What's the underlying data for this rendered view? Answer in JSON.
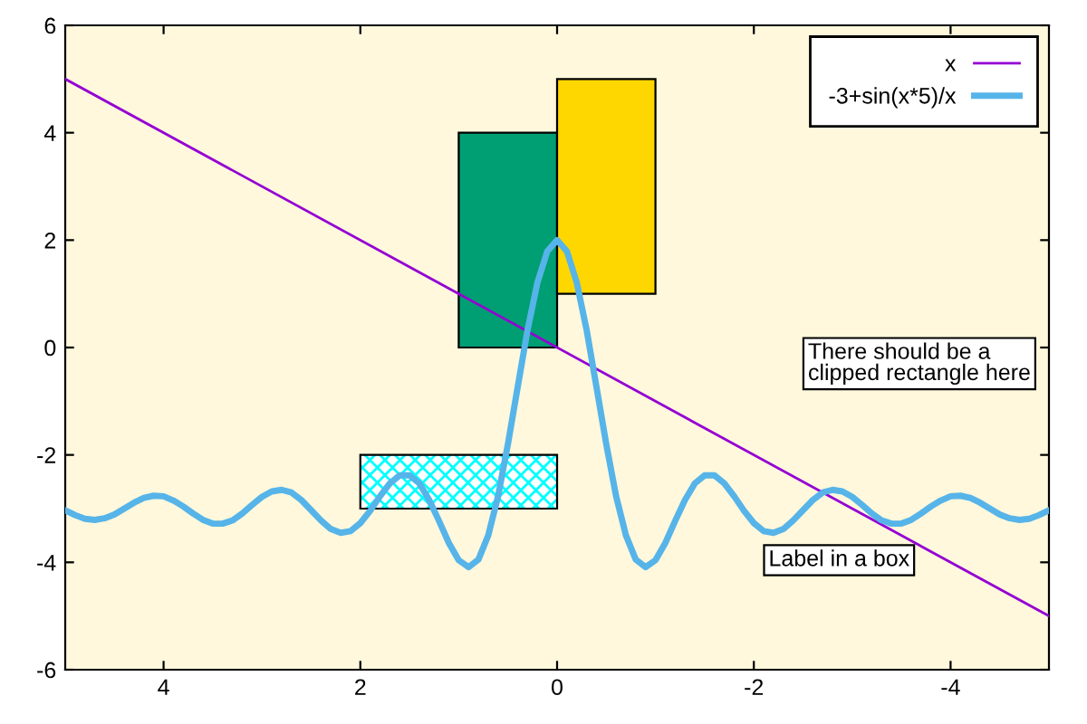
{
  "chart_data": {
    "type": "line",
    "xlim": [
      5,
      -5
    ],
    "ylim": [
      -6,
      6
    ],
    "xticks": [
      4,
      2,
      0,
      -2,
      -4
    ],
    "yticks": [
      -6,
      -4,
      -2,
      0,
      2,
      4,
      6
    ],
    "grid": false,
    "legend": "top right",
    "series": [
      {
        "type": "area",
        "color": "#009e73",
        "x": [
          1,
          1,
          0,
          0
        ],
        "values": [
          0,
          4,
          4,
          0
        ]
      },
      {
        "type": "area",
        "color": "#ffd700",
        "x": [
          0,
          0,
          -1,
          -1
        ],
        "values": [
          1,
          5,
          5,
          1
        ]
      },
      {
        "type": "area",
        "color": "#00ffff",
        "x": [
          2,
          2,
          0,
          0
        ],
        "values": [
          -3,
          -2,
          -2,
          -3
        ]
      },
      {
        "name": "x",
        "color": "#9400d3",
        "x": [
          5,
          -5
        ],
        "values": [
          5,
          -5
        ]
      },
      {
        "name": "-3+sin(x*5)/x",
        "color": "#56b4e9",
        "x": [
          5.0,
          4.9,
          4.8,
          4.7,
          4.6,
          4.5,
          4.4,
          4.3,
          4.2,
          4.1,
          4.0,
          3.9,
          3.8,
          3.7,
          3.6,
          3.5,
          3.4,
          3.3,
          3.2,
          3.1,
          3.0,
          2.9,
          2.8,
          2.7,
          2.6,
          2.5,
          2.4,
          2.3,
          2.2,
          2.1,
          2.0,
          1.9,
          1.8,
          1.7,
          1.6,
          1.5,
          1.4,
          1.3,
          1.2,
          1.1,
          1.0,
          0.9,
          0.8,
          0.7,
          0.6,
          0.5,
          0.4,
          0.3,
          0.2,
          0.1,
          0.0,
          -0.1,
          -0.2,
          -0.3,
          -0.4,
          -0.5,
          -0.6,
          -0.7,
          -0.8,
          -0.9,
          -1.0,
          -1.1,
          -1.2,
          -1.3,
          -1.4,
          -1.5,
          -1.6,
          -1.7,
          -1.8,
          -1.9,
          -2.0,
          -2.1,
          -2.2,
          -2.3,
          -2.4,
          -2.5,
          -2.6,
          -2.7,
          -2.8,
          -2.9,
          -3.0,
          -3.1,
          -3.2,
          -3.3,
          -3.4,
          -3.5,
          -3.6,
          -3.7,
          -3.8,
          -3.9,
          -4.0,
          -4.1,
          -4.2,
          -4.3,
          -4.4,
          -4.5,
          -4.6,
          -4.7,
          -4.8,
          -4.9,
          -5.0
        ],
        "values": [
          -3.03,
          -3.12,
          -3.19,
          -3.21,
          -3.18,
          -3.11,
          -3.0,
          -2.89,
          -2.8,
          -2.76,
          -2.77,
          -2.85,
          -2.96,
          -3.09,
          -3.21,
          -3.28,
          -3.28,
          -3.22,
          -3.09,
          -2.93,
          -2.78,
          -2.68,
          -2.65,
          -2.7,
          -2.84,
          -3.03,
          -3.22,
          -3.38,
          -3.45,
          -3.42,
          -3.27,
          -3.04,
          -2.77,
          -2.53,
          -2.38,
          -2.38,
          -2.53,
          -2.84,
          -3.23,
          -3.64,
          -3.96,
          -4.09,
          -3.95,
          -3.5,
          -2.77,
          -1.8,
          -0.73,
          0.33,
          1.21,
          1.79,
          2.0,
          1.79,
          1.21,
          0.33,
          -0.73,
          -1.8,
          -2.77,
          -3.5,
          -3.95,
          -4.09,
          -3.96,
          -3.64,
          -3.23,
          -2.84,
          -2.53,
          -2.38,
          -2.38,
          -2.53,
          -2.77,
          -3.04,
          -3.27,
          -3.42,
          -3.45,
          -3.38,
          -3.22,
          -3.03,
          -2.84,
          -2.7,
          -2.65,
          -2.68,
          -2.78,
          -2.93,
          -3.09,
          -3.22,
          -3.28,
          -3.28,
          -3.21,
          -3.09,
          -2.96,
          -2.85,
          -2.77,
          -2.76,
          -2.8,
          -2.89,
          -3.0,
          -3.11,
          -3.18,
          -3.21,
          -3.19,
          -3.12,
          -3.03
        ]
      }
    ],
    "annotations": [
      "There should be a\nclipped rectangle here",
      "Label in a box"
    ]
  }
}
